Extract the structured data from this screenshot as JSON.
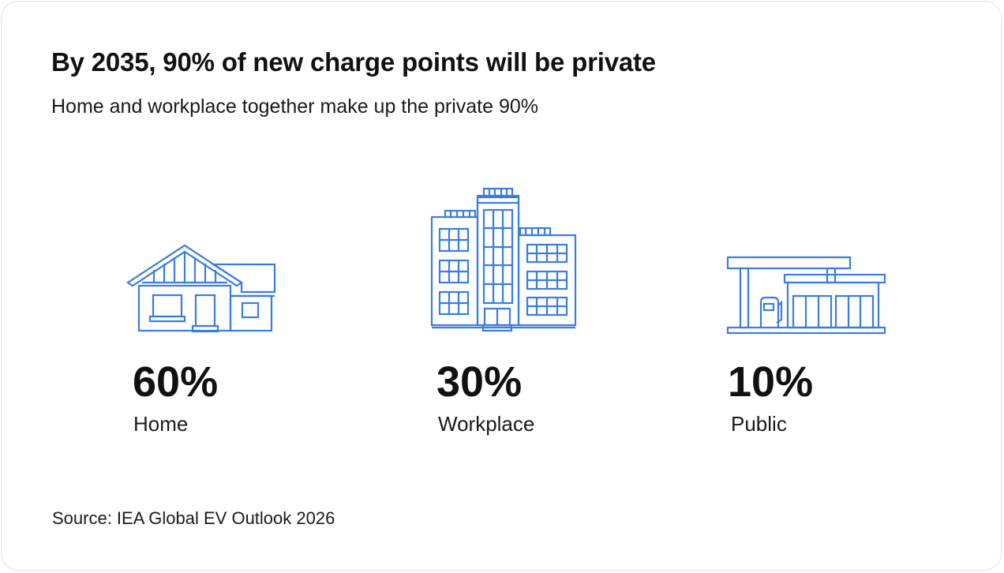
{
  "title": "By 2035, 90% of new charge points will be private",
  "subtitle": "Home and workplace together make up the private 90%",
  "source": "Source: IEA Global EV Outlook 2026",
  "accent_color": "#3b7ddd",
  "chart_data": {
    "type": "table",
    "title": "By 2035, 90% of new charge points will be private",
    "subtitle": "Home and workplace together make up the private 90%",
    "categories": [
      "Home",
      "Workplace",
      "Public"
    ],
    "values": [
      60,
      30,
      10
    ],
    "unit": "%",
    "items": [
      {
        "label": "Home",
        "value_text": "60%",
        "value": 60,
        "icon": "house-icon"
      },
      {
        "label": "Workplace",
        "value_text": "30%",
        "value": 30,
        "icon": "office-buildings-icon"
      },
      {
        "label": "Public",
        "value_text": "10%",
        "value": 10,
        "icon": "charging-station-icon"
      }
    ]
  }
}
